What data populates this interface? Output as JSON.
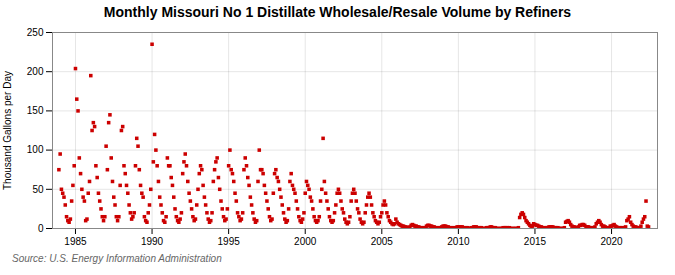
{
  "chart_data": {
    "type": "scatter",
    "title": "Monthly Missouri No 1 Distillate Wholesale/Resale Volume by Refiners",
    "ylabel": "Thousand Gallons per Day",
    "source": "Source: U.S. Energy Information Administration",
    "color": "#cc0000",
    "marker": "square",
    "grid": true,
    "xlim": [
      1983.5,
      2023
    ],
    "ylim": [
      0,
      250
    ],
    "xticks": [
      1985,
      1990,
      1995,
      2000,
      2005,
      2010,
      2015,
      2020
    ],
    "yticks": [
      0,
      50,
      100,
      150,
      200,
      250
    ],
    "x": [
      1983.917,
      1984.0,
      1984.083,
      1984.167,
      1984.25,
      1984.333,
      1984.417,
      1984.5,
      1984.583,
      1984.667,
      1984.75,
      1984.833,
      1984.917,
      1985.0,
      1985.083,
      1985.167,
      1985.25,
      1985.333,
      1985.417,
      1985.5,
      1985.583,
      1985.667,
      1985.75,
      1985.833,
      1985.917,
      1986.0,
      1986.083,
      1986.167,
      1986.25,
      1986.333,
      1986.417,
      1986.5,
      1986.583,
      1986.667,
      1986.75,
      1986.833,
      1986.917,
      1987.0,
      1987.083,
      1987.167,
      1987.25,
      1987.333,
      1987.417,
      1987.5,
      1987.583,
      1987.667,
      1987.75,
      1987.833,
      1987.917,
      1988.0,
      1988.083,
      1988.167,
      1988.25,
      1988.333,
      1988.417,
      1988.5,
      1988.583,
      1988.667,
      1988.75,
      1988.833,
      1988.917,
      1989.0,
      1989.083,
      1989.167,
      1989.25,
      1989.333,
      1989.417,
      1989.5,
      1989.583,
      1989.667,
      1989.75,
      1989.833,
      1989.917,
      1990.0,
      1990.083,
      1990.167,
      1990.25,
      1990.333,
      1990.417,
      1990.5,
      1990.583,
      1990.667,
      1990.75,
      1990.833,
      1990.917,
      1991.0,
      1991.083,
      1991.167,
      1991.25,
      1991.333,
      1991.417,
      1991.5,
      1991.583,
      1991.667,
      1991.75,
      1991.833,
      1991.917,
      1992.0,
      1992.083,
      1992.167,
      1992.25,
      1992.333,
      1992.417,
      1992.5,
      1992.583,
      1992.667,
      1992.75,
      1992.833,
      1992.917,
      1993.0,
      1993.083,
      1993.167,
      1993.25,
      1993.333,
      1993.417,
      1993.5,
      1993.583,
      1993.667,
      1993.75,
      1993.833,
      1993.917,
      1994.0,
      1994.083,
      1994.167,
      1994.25,
      1994.333,
      1994.417,
      1994.5,
      1994.583,
      1994.667,
      1994.75,
      1994.833,
      1994.917,
      1995.0,
      1995.083,
      1995.167,
      1995.25,
      1995.333,
      1995.417,
      1995.5,
      1995.583,
      1995.667,
      1995.75,
      1995.833,
      1995.917,
      1996.0,
      1996.083,
      1996.167,
      1996.25,
      1996.333,
      1996.417,
      1996.5,
      1996.583,
      1996.667,
      1996.75,
      1996.833,
      1996.917,
      1997.0,
      1997.083,
      1997.167,
      1997.25,
      1997.333,
      1997.417,
      1997.5,
      1997.583,
      1997.667,
      1997.75,
      1997.833,
      1997.917,
      1998.0,
      1998.083,
      1998.167,
      1998.25,
      1998.333,
      1998.417,
      1998.5,
      1998.583,
      1998.667,
      1998.75,
      1998.833,
      1998.917,
      1999.0,
      1999.083,
      1999.167,
      1999.25,
      1999.333,
      1999.417,
      1999.5,
      1999.583,
      1999.667,
      1999.75,
      1999.833,
      1999.917,
      2000.0,
      2000.083,
      2000.167,
      2000.25,
      2000.333,
      2000.417,
      2000.5,
      2000.583,
      2000.667,
      2000.75,
      2000.833,
      2000.917,
      2001.0,
      2001.083,
      2001.167,
      2001.25,
      2001.333,
      2001.417,
      2001.5,
      2001.583,
      2001.667,
      2001.75,
      2001.833,
      2001.917,
      2002.0,
      2002.083,
      2002.167,
      2002.25,
      2002.333,
      2002.417,
      2002.5,
      2002.583,
      2002.667,
      2002.75,
      2002.833,
      2002.917,
      2003.0,
      2003.083,
      2003.167,
      2003.25,
      2003.333,
      2003.417,
      2003.5,
      2003.583,
      2003.667,
      2003.75,
      2003.833,
      2003.917,
      2004.0,
      2004.083,
      2004.167,
      2004.25,
      2004.333,
      2004.417,
      2004.5,
      2004.583,
      2004.667,
      2004.75,
      2004.833,
      2004.917,
      2005.0,
      2005.083,
      2005.167,
      2005.25,
      2005.333,
      2005.417,
      2005.5,
      2005.583,
      2005.667,
      2005.75,
      2005.833,
      2005.917,
      2006.0,
      2006.083,
      2006.167,
      2006.25,
      2006.333,
      2006.417,
      2006.5,
      2006.583,
      2006.667,
      2006.75,
      2006.833,
      2006.917,
      2007.0,
      2007.083,
      2007.167,
      2007.25,
      2007.333,
      2007.417,
      2007.5,
      2007.583,
      2007.667,
      2007.75,
      2007.833,
      2007.917,
      2008.0,
      2008.083,
      2008.167,
      2008.25,
      2008.333,
      2008.417,
      2008.5,
      2008.583,
      2008.667,
      2008.75,
      2008.833,
      2008.917,
      2009.0,
      2009.083,
      2009.167,
      2009.25,
      2009.333,
      2009.417,
      2009.5,
      2009.583,
      2009.667,
      2009.75,
      2009.833,
      2009.917,
      2010.0,
      2010.083,
      2010.167,
      2010.25,
      2010.333,
      2010.417,
      2010.5,
      2010.583,
      2010.667,
      2010.75,
      2010.833,
      2010.917,
      2011.0,
      2011.083,
      2011.167,
      2011.25,
      2011.333,
      2011.417,
      2011.5,
      2011.583,
      2011.667,
      2011.75,
      2011.833,
      2011.917,
      2012.0,
      2012.083,
      2012.167,
      2012.25,
      2012.333,
      2012.417,
      2012.5,
      2012.583,
      2012.667,
      2012.75,
      2012.833,
      2012.917,
      2013.0,
      2013.083,
      2013.167,
      2013.25,
      2013.333,
      2013.417,
      2013.5,
      2013.583,
      2013.667,
      2013.75,
      2013.833,
      2013.917,
      2014.0,
      2014.083,
      2014.167,
      2014.25,
      2014.333,
      2014.417,
      2014.5,
      2014.583,
      2014.667,
      2014.75,
      2014.833,
      2014.917,
      2015.0,
      2015.083,
      2015.167,
      2015.25,
      2015.333,
      2015.417,
      2015.5,
      2015.583,
      2015.667,
      2015.75,
      2015.833,
      2015.917,
      2016.0,
      2016.083,
      2016.167,
      2016.25,
      2016.333,
      2016.417,
      2016.5,
      2016.583,
      2016.667,
      2016.75,
      2016.833,
      2016.917,
      2017.0,
      2017.083,
      2017.167,
      2017.25,
      2017.333,
      2017.417,
      2017.5,
      2017.583,
      2017.667,
      2017.75,
      2017.833,
      2017.917,
      2018.0,
      2018.083,
      2018.167,
      2018.25,
      2018.333,
      2018.417,
      2018.5,
      2018.583,
      2018.667,
      2018.75,
      2018.833,
      2018.917,
      2019.0,
      2019.083,
      2019.167,
      2019.25,
      2019.333,
      2019.417,
      2019.5,
      2019.583,
      2019.667,
      2019.75,
      2019.833,
      2019.917,
      2020.0,
      2020.083,
      2020.167,
      2020.25,
      2020.333,
      2020.417,
      2020.5,
      2020.583,
      2020.667,
      2020.75,
      2020.833,
      2020.917,
      2021.0,
      2021.083,
      2021.167,
      2021.25,
      2021.333,
      2021.417,
      2021.5,
      2021.583,
      2021.667,
      2021.75,
      2021.833,
      2021.917,
      2022.0,
      2022.083,
      2022.167,
      2022.25,
      2022.333,
      2022.417
    ],
    "values": [
      75,
      95,
      50,
      45,
      40,
      30,
      15,
      10,
      8,
      12,
      35,
      55,
      80,
      204,
      165,
      150,
      90,
      70,
      50,
      40,
      35,
      10,
      12,
      45,
      60,
      195,
      125,
      135,
      130,
      80,
      65,
      45,
      35,
      25,
      15,
      10,
      15,
      105,
      75,
      135,
      145,
      90,
      60,
      40,
      30,
      15,
      10,
      15,
      55,
      125,
      130,
      80,
      70,
      55,
      45,
      30,
      20,
      12,
      15,
      20,
      80,
      115,
      105,
      75,
      55,
      45,
      40,
      15,
      10,
      8,
      20,
      30,
      50,
      235,
      85,
      120,
      100,
      80,
      60,
      40,
      30,
      20,
      10,
      8,
      15,
      90,
      80,
      80,
      65,
      55,
      40,
      25,
      15,
      10,
      8,
      12,
      20,
      70,
      85,
      95,
      80,
      60,
      45,
      35,
      25,
      15,
      10,
      12,
      30,
      50,
      70,
      80,
      75,
      55,
      40,
      30,
      20,
      12,
      8,
      10,
      20,
      60,
      75,
      85,
      90,
      65,
      50,
      35,
      25,
      15,
      10,
      12,
      25,
      80,
      100,
      75,
      70,
      60,
      45,
      35,
      20,
      15,
      10,
      12,
      20,
      75,
      90,
      80,
      65,
      55,
      40,
      30,
      20,
      12,
      8,
      10,
      60,
      100,
      75,
      75,
      70,
      55,
      45,
      35,
      25,
      15,
      10,
      12,
      45,
      70,
      75,
      65,
      60,
      50,
      40,
      30,
      20,
      12,
      8,
      10,
      25,
      60,
      70,
      55,
      50,
      45,
      35,
      25,
      15,
      10,
      8,
      12,
      20,
      45,
      60,
      55,
      50,
      40,
      35,
      25,
      15,
      10,
      8,
      10,
      15,
      35,
      50,
      115,
      60,
      45,
      35,
      25,
      15,
      10,
      8,
      10,
      20,
      30,
      45,
      50,
      45,
      35,
      25,
      20,
      12,
      8,
      6,
      8,
      15,
      35,
      45,
      50,
      45,
      35,
      25,
      20,
      12,
      8,
      6,
      8,
      20,
      30,
      40,
      45,
      40,
      30,
      20,
      15,
      10,
      8,
      6,
      8,
      15,
      20,
      30,
      35,
      30,
      20,
      15,
      10,
      8,
      6,
      5,
      6,
      12,
      8,
      6,
      5,
      4,
      3,
      3,
      2,
      2,
      1,
      1,
      2,
      4,
      5,
      4,
      3,
      3,
      2,
      2,
      1,
      1,
      1,
      1,
      1,
      3,
      4,
      4,
      3,
      3,
      2,
      2,
      1,
      1,
      1,
      1,
      1,
      2,
      3,
      3,
      3,
      2,
      2,
      1,
      1,
      1,
      1,
      0,
      1,
      2,
      2,
      2,
      2,
      2,
      1,
      1,
      1,
      1,
      0,
      0,
      1,
      1,
      2,
      2,
      2,
      1,
      1,
      1,
      1,
      0,
      0,
      0,
      1,
      1,
      1,
      2,
      2,
      1,
      1,
      1,
      0,
      0,
      0,
      0,
      0,
      1,
      1,
      1,
      1,
      1,
      1,
      0,
      0,
      0,
      0,
      0,
      0,
      1,
      14,
      18,
      20,
      18,
      14,
      10,
      8,
      6,
      4,
      3,
      3,
      6,
      5,
      4,
      4,
      3,
      2,
      2,
      1,
      1,
      1,
      1,
      1,
      2,
      2,
      2,
      2,
      1,
      1,
      1,
      1,
      0,
      0,
      0,
      0,
      1,
      8,
      9,
      10,
      8,
      5,
      3,
      2,
      2,
      1,
      1,
      2,
      4,
      4,
      5,
      5,
      4,
      2,
      2,
      2,
      1,
      1,
      1,
      1,
      2,
      6,
      8,
      10,
      8,
      5,
      3,
      3,
      2,
      1,
      1,
      1,
      3,
      3,
      4,
      5,
      3,
      2,
      1,
      1,
      1,
      1,
      1,
      1,
      2,
      10,
      12,
      15,
      8,
      5,
      3,
      2,
      2,
      1,
      1,
      1,
      3,
      8,
      12,
      15,
      35,
      3,
      2
    ]
  }
}
